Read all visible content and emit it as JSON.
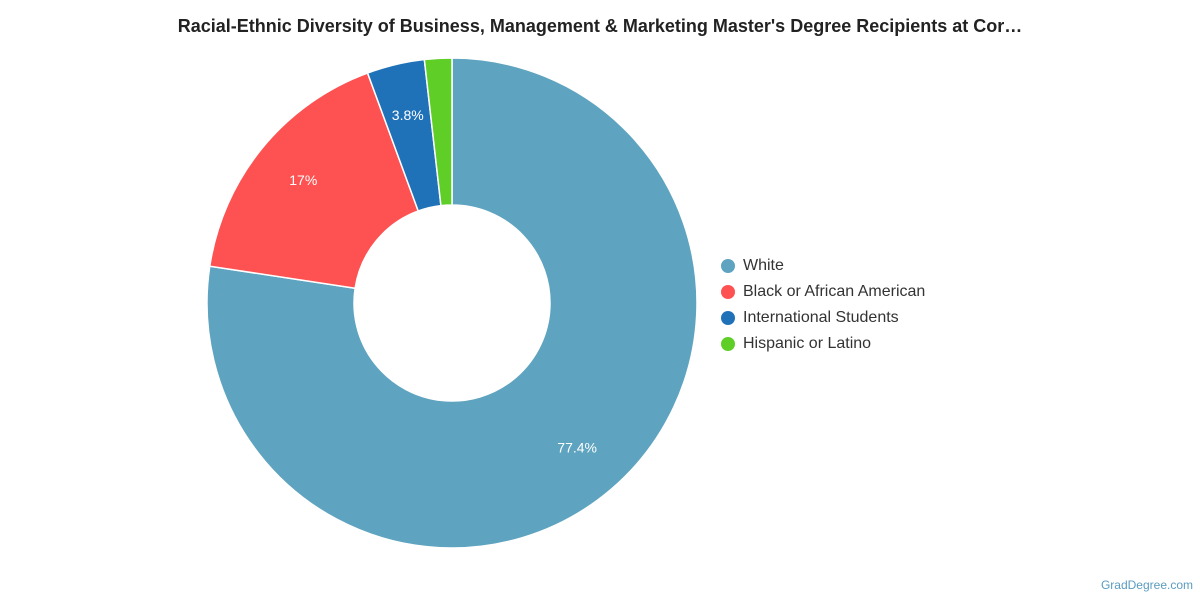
{
  "title": "Racial-Ethnic Diversity of Business, Management & Marketing Master's Degree Recipients at Cor…",
  "credit": "GradDegree.com",
  "chart_data": {
    "type": "pie",
    "donut": true,
    "legend_position": "right",
    "slices": [
      {
        "name": "White",
        "value": 77.4,
        "label": "77.4%",
        "color": "#5ea3bf"
      },
      {
        "name": "Black or African American",
        "value": 17,
        "label": "17%",
        "color": "#fe5151"
      },
      {
        "name": "International Students",
        "value": 3.8,
        "label": "3.8%",
        "color": "#2072b8"
      },
      {
        "name": "Hispanic or Latino",
        "value": 1.8,
        "label": "",
        "color": "#5fce27"
      }
    ]
  }
}
